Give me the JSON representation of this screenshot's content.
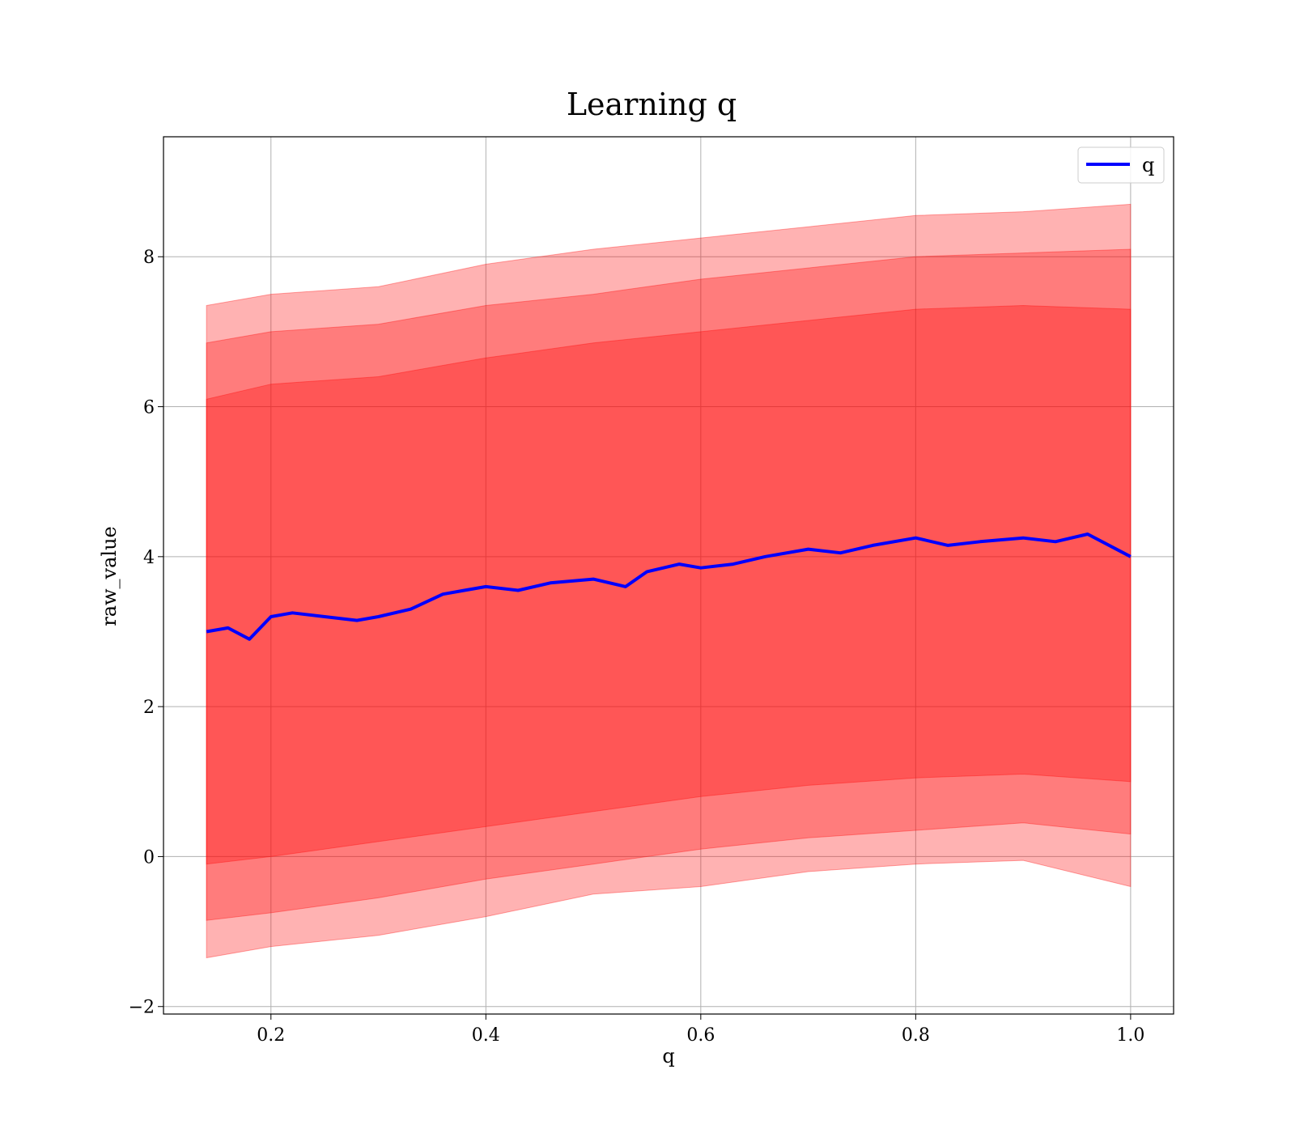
{
  "chart_data": {
    "type": "line",
    "title": "Learning q",
    "xlabel": "q",
    "ylabel": "raw_value",
    "xlim": [
      0.1,
      1.04
    ],
    "ylim": [
      -2.1,
      9.6
    ],
    "x_ticks": [
      0.2,
      0.4,
      0.6,
      0.8,
      1.0
    ],
    "x_tick_labels": [
      "0.2",
      "0.4",
      "0.6",
      "0.8",
      "1.0"
    ],
    "y_ticks": [
      -2,
      0,
      2,
      4,
      6,
      8
    ],
    "y_tick_labels": [
      "−2",
      "0",
      "2",
      "4",
      "6",
      "8"
    ],
    "grid": true,
    "legend": {
      "placement": "top-right",
      "entries": [
        "q"
      ]
    },
    "colors": {
      "line": "#0000ff",
      "band": "#ff0000",
      "grid": "#b0b0b0"
    },
    "series": [
      {
        "name": "q",
        "x": [
          0.14,
          0.16,
          0.18,
          0.2,
          0.22,
          0.25,
          0.28,
          0.3,
          0.33,
          0.36,
          0.38,
          0.4,
          0.43,
          0.46,
          0.5,
          0.53,
          0.55,
          0.58,
          0.6,
          0.63,
          0.66,
          0.7,
          0.73,
          0.76,
          0.8,
          0.83,
          0.86,
          0.9,
          0.93,
          0.96,
          1.0
        ],
        "y": [
          3.0,
          3.05,
          2.9,
          3.2,
          3.25,
          3.2,
          3.15,
          3.2,
          3.3,
          3.5,
          3.55,
          3.6,
          3.55,
          3.65,
          3.7,
          3.6,
          3.8,
          3.9,
          3.85,
          3.9,
          4.0,
          4.1,
          4.05,
          4.15,
          4.25,
          4.15,
          4.2,
          4.25,
          4.2,
          4.3,
          4.0
        ]
      }
    ],
    "bands": [
      {
        "x": [
          0.14,
          0.2,
          0.3,
          0.4,
          0.5,
          0.6,
          0.7,
          0.8,
          0.9,
          1.0
        ],
        "upper": [
          7.35,
          7.5,
          7.6,
          7.9,
          8.1,
          8.25,
          8.4,
          8.55,
          8.6,
          8.7
        ],
        "lower": [
          -1.35,
          -1.2,
          -1.05,
          -0.8,
          -0.5,
          -0.4,
          -0.2,
          -0.1,
          -0.05,
          -0.4
        ]
      },
      {
        "x": [
          0.14,
          0.2,
          0.3,
          0.4,
          0.5,
          0.6,
          0.7,
          0.8,
          0.9,
          1.0
        ],
        "upper": [
          6.85,
          7.0,
          7.1,
          7.35,
          7.5,
          7.7,
          7.85,
          8.0,
          8.05,
          8.1
        ],
        "lower": [
          -0.85,
          -0.75,
          -0.55,
          -0.3,
          -0.1,
          0.1,
          0.25,
          0.35,
          0.45,
          0.3
        ]
      },
      {
        "x": [
          0.14,
          0.2,
          0.3,
          0.4,
          0.5,
          0.6,
          0.7,
          0.8,
          0.9,
          1.0
        ],
        "upper": [
          6.1,
          6.3,
          6.4,
          6.65,
          6.85,
          7.0,
          7.15,
          7.3,
          7.35,
          7.3
        ],
        "lower": [
          -0.1,
          0.0,
          0.2,
          0.4,
          0.6,
          0.8,
          0.95,
          1.05,
          1.1,
          1.0
        ]
      }
    ]
  }
}
